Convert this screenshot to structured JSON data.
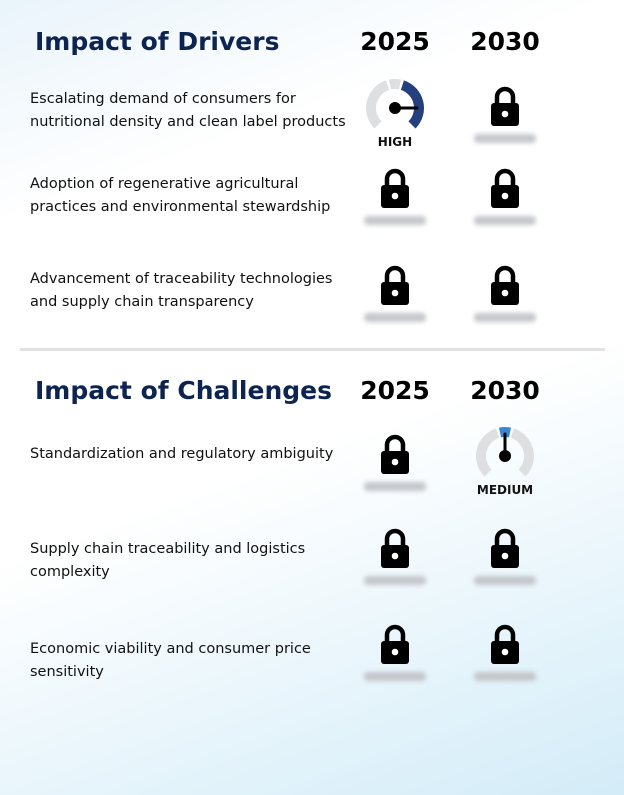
{
  "sections": [
    {
      "title": "Impact of Drivers",
      "years": [
        "2025",
        "2030"
      ],
      "rows": [
        {
          "label": "Escalating demand of consumers for nutritional density and clean label products",
          "cells": [
            {
              "rating": "HIGH"
            },
            {
              "locked": true
            }
          ]
        },
        {
          "label": "Adoption of regenerative agricultural practices and environmental stewardship",
          "cells": [
            {
              "locked": true
            },
            {
              "locked": true
            }
          ]
        },
        {
          "label": "Advancement of traceability technologies and supply chain transparency",
          "cells": [
            {
              "locked": true
            },
            {
              "locked": true
            }
          ]
        }
      ]
    },
    {
      "title": "Impact of Challenges",
      "years": [
        "2025",
        "2030"
      ],
      "rows": [
        {
          "label": "Standardization and regulatory ambiguity",
          "cells": [
            {
              "locked": true
            },
            {
              "rating": "MEDIUM"
            }
          ]
        },
        {
          "label": "Supply chain traceability and logistics complexity",
          "cells": [
            {
              "locked": true
            },
            {
              "locked": true
            }
          ]
        },
        {
          "label": "Economic viability and consumer price sensitivity",
          "cells": [
            {
              "locked": true
            },
            {
              "locked": true
            }
          ]
        }
      ]
    }
  ]
}
